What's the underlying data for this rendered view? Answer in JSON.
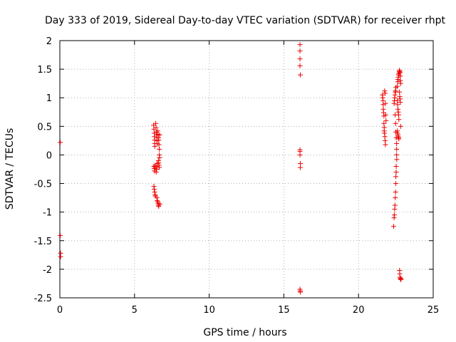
{
  "chart_data": {
    "type": "scatter",
    "title": "Day 333 of 2019, Sidereal Day-to-day VTEC variation (SDTVAR) for receiver rhpt",
    "xlabel": "GPS time / hours",
    "ylabel": "SDTVAR / TECUs",
    "xlim": [
      0,
      25
    ],
    "ylim": [
      -2.5,
      2
    ],
    "xticks": [
      0,
      5,
      10,
      15,
      20,
      25
    ],
    "yticks": [
      -2.5,
      -2,
      -1.5,
      -1,
      -0.5,
      0,
      0.5,
      1,
      1.5,
      2
    ],
    "grid": true,
    "marker": "+",
    "marker_color": "#ee0000",
    "points": [
      [
        0.03,
        0.22
      ],
      [
        0.03,
        -1.41
      ],
      [
        0.05,
        -1.72
      ],
      [
        0.05,
        -1.78
      ],
      [
        6.28,
        0.52
      ],
      [
        6.3,
        0.45
      ],
      [
        6.32,
        0.38
      ],
      [
        6.33,
        0.32
      ],
      [
        6.35,
        0.26
      ],
      [
        6.35,
        0.2
      ],
      [
        6.36,
        0.15
      ],
      [
        6.3,
        -0.2
      ],
      [
        6.32,
        -0.24
      ],
      [
        6.33,
        -0.28
      ],
      [
        6.38,
        -0.18
      ],
      [
        6.4,
        -0.22
      ],
      [
        6.3,
        -0.55
      ],
      [
        6.32,
        -0.6
      ],
      [
        6.35,
        -0.65
      ],
      [
        6.38,
        -0.7
      ],
      [
        6.4,
        -0.72
      ],
      [
        6.42,
        0.55
      ],
      [
        6.44,
        0.48
      ],
      [
        6.46,
        0.4
      ],
      [
        6.48,
        0.35
      ],
      [
        6.5,
        0.3
      ],
      [
        6.5,
        0.25
      ],
      [
        6.52,
        0.2
      ],
      [
        6.45,
        -0.3
      ],
      [
        6.48,
        -0.25
      ],
      [
        6.5,
        -0.2
      ],
      [
        6.52,
        -0.15
      ],
      [
        6.5,
        -0.75
      ],
      [
        6.52,
        -0.8
      ],
      [
        6.55,
        -0.82
      ],
      [
        6.58,
        -0.85
      ],
      [
        6.6,
        -0.88
      ],
      [
        6.62,
        -0.9
      ],
      [
        6.55,
        0.42
      ],
      [
        6.58,
        0.36
      ],
      [
        6.6,
        0.3
      ],
      [
        6.62,
        0.26
      ],
      [
        6.64,
        0.18
      ],
      [
        6.66,
        0.1
      ],
      [
        6.6,
        -0.1
      ],
      [
        6.62,
        -0.14
      ],
      [
        6.64,
        -0.18
      ],
      [
        6.66,
        -0.22
      ],
      [
        6.68,
        -0.05
      ],
      [
        6.66,
        0.0
      ],
      [
        6.68,
        0.35
      ],
      [
        6.7,
        -0.86
      ],
      [
        16.08,
        1.93
      ],
      [
        16.08,
        1.82
      ],
      [
        16.08,
        1.68
      ],
      [
        16.08,
        1.56
      ],
      [
        16.1,
        1.4
      ],
      [
        16.08,
        0.09
      ],
      [
        16.08,
        0.06
      ],
      [
        16.08,
        0.0
      ],
      [
        16.1,
        -0.15
      ],
      [
        16.1,
        -0.22
      ],
      [
        16.08,
        -2.35
      ],
      [
        16.1,
        -2.38
      ],
      [
        16.1,
        -2.4
      ],
      [
        21.6,
        1.05
      ],
      [
        21.62,
        1.0
      ],
      [
        21.64,
        0.95
      ],
      [
        21.65,
        0.88
      ],
      [
        21.66,
        0.8
      ],
      [
        21.68,
        0.74
      ],
      [
        21.7,
        0.68
      ],
      [
        21.7,
        0.55
      ],
      [
        21.72,
        0.48
      ],
      [
        21.72,
        0.42
      ],
      [
        21.74,
        0.38
      ],
      [
        21.76,
        0.32
      ],
      [
        21.78,
        0.25
      ],
      [
        21.8,
        0.18
      ],
      [
        21.75,
        1.12
      ],
      [
        21.78,
        1.08
      ],
      [
        21.8,
        0.9
      ],
      [
        21.82,
        0.7
      ],
      [
        21.84,
        0.6
      ],
      [
        22.35,
        -1.25
      ],
      [
        22.38,
        -1.1
      ],
      [
        22.4,
        -1.05
      ],
      [
        22.42,
        -0.95
      ],
      [
        22.44,
        -0.88
      ],
      [
        22.46,
        -0.75
      ],
      [
        22.48,
        -0.65
      ],
      [
        22.5,
        -0.5
      ],
      [
        22.5,
        -0.38
      ],
      [
        22.52,
        -0.3
      ],
      [
        22.52,
        -0.2
      ],
      [
        22.38,
        0.9
      ],
      [
        22.4,
        0.95
      ],
      [
        22.42,
        1.0
      ],
      [
        22.44,
        1.05
      ],
      [
        22.46,
        1.1
      ],
      [
        22.48,
        1.12
      ],
      [
        22.5,
        1.18
      ],
      [
        22.45,
        0.7
      ],
      [
        22.48,
        0.55
      ],
      [
        22.5,
        0.4
      ],
      [
        22.52,
        0.3
      ],
      [
        22.55,
        0.2
      ],
      [
        22.55,
        0.1
      ],
      [
        22.55,
        0.0
      ],
      [
        22.56,
        -0.08
      ],
      [
        22.6,
        1.2
      ],
      [
        22.62,
        1.28
      ],
      [
        22.64,
        1.32
      ],
      [
        22.66,
        1.36
      ],
      [
        22.68,
        1.4
      ],
      [
        22.7,
        1.42
      ],
      [
        22.72,
        1.45
      ],
      [
        22.6,
        0.95
      ],
      [
        22.62,
        0.88
      ],
      [
        22.64,
        0.8
      ],
      [
        22.66,
        0.75
      ],
      [
        22.68,
        0.7
      ],
      [
        22.7,
        0.62
      ],
      [
        22.6,
        0.42
      ],
      [
        22.62,
        0.38
      ],
      [
        22.64,
        0.35
      ],
      [
        22.66,
        0.32
      ],
      [
        22.68,
        0.3
      ],
      [
        22.7,
        0.28
      ],
      [
        22.74,
        1.48
      ],
      [
        22.76,
        1.46
      ],
      [
        22.78,
        1.44
      ],
      [
        22.8,
        1.38
      ],
      [
        22.8,
        1.3
      ],
      [
        22.82,
        1.25
      ],
      [
        22.74,
        1.1
      ],
      [
        22.76,
        1.02
      ],
      [
        22.78,
        0.98
      ],
      [
        22.8,
        0.92
      ],
      [
        22.82,
        0.5
      ],
      [
        22.75,
        -2.02
      ],
      [
        22.76,
        -2.08
      ],
      [
        22.78,
        -2.14
      ],
      [
        22.8,
        -2.16
      ],
      [
        22.82,
        -2.18
      ],
      [
        22.85,
        -2.17
      ]
    ]
  }
}
